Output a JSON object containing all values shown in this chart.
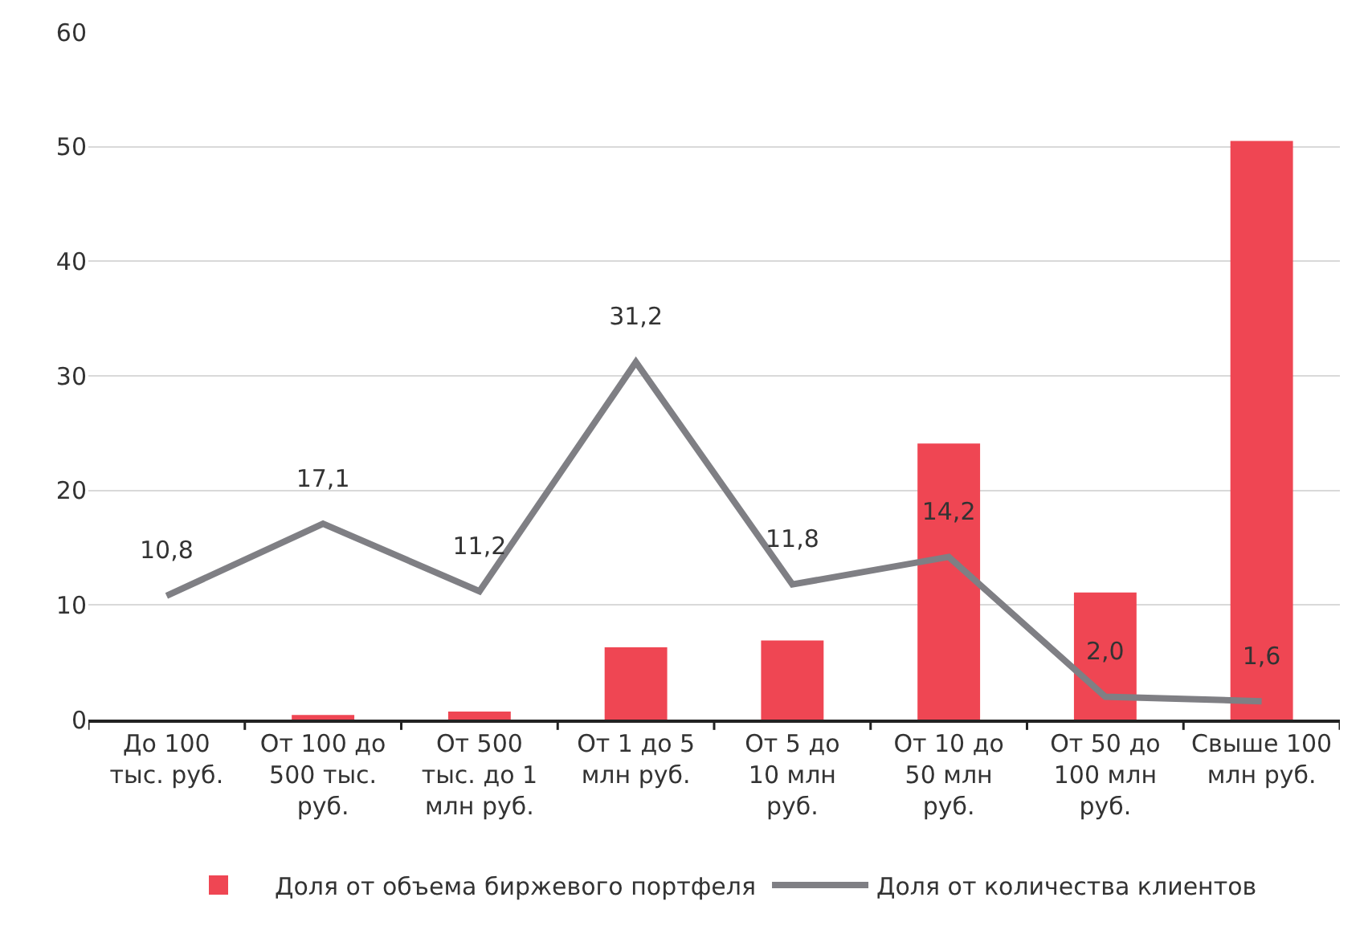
{
  "chart_data": {
    "type": "bar",
    "categories": [
      "До 100 тыс. руб.",
      "От 100 до 500 тыс. руб.",
      "От 500 тыс. до 1 млн руб.",
      "От 1 до 5 млн руб.",
      "От 5 до 10 млн руб.",
      "От 10 до 50 млн руб.",
      "От 50 до 100 млн руб.",
      "Свыше 100 млн руб."
    ],
    "series": [
      {
        "name": "Доля от объема биржевого портфеля",
        "color": "#ef4653",
        "values": [
          0,
          0.4,
          0.7,
          6.3,
          6.9,
          24.1,
          11.1,
          50.5
        ]
      },
      {
        "name": "Доля от количества клиентов",
        "type": "line",
        "color": "#7f7f84",
        "values": [
          10.8,
          17.1,
          11.2,
          31.2,
          11.8,
          14.2,
          2.0,
          1.6
        ],
        "value_labels": [
          "10,8",
          "17,1",
          "11,2",
          "31,2",
          "11,8",
          "14,2",
          "2,0",
          "1,6"
        ]
      }
    ],
    "ylim": [
      0,
      60
    ],
    "yticks": [
      0,
      10,
      20,
      30,
      40,
      50,
      60
    ],
    "grid": "y",
    "legend": "bottom",
    "marker": "none",
    "line_style": "solid"
  }
}
